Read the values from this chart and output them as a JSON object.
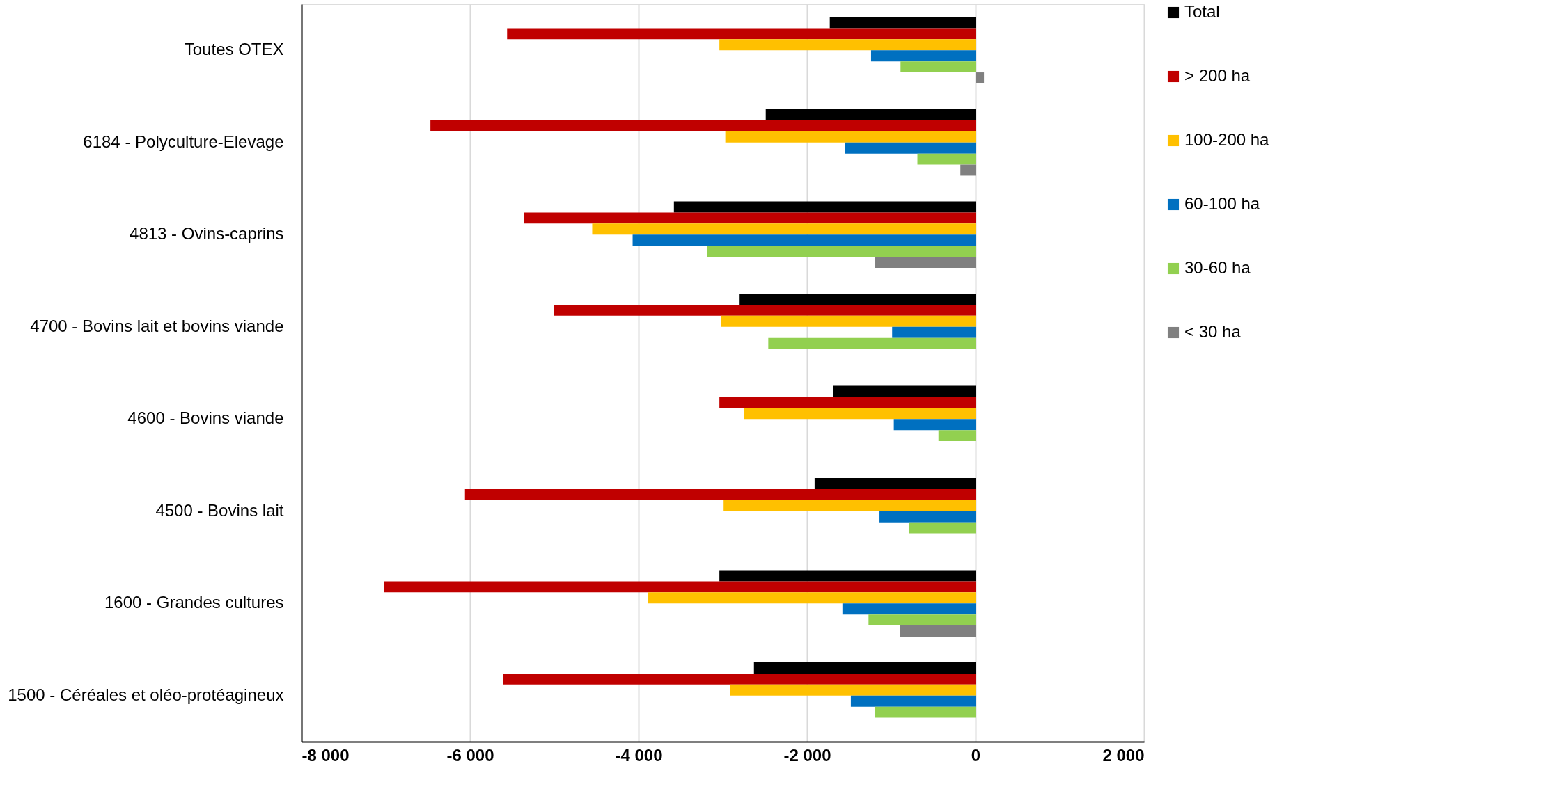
{
  "chart_data": {
    "type": "bar",
    "orientation": "horizontal",
    "categories": [
      "Toutes OTEX",
      "6184 - Polyculture-Elevage",
      "4813 - Ovins-caprins",
      "4700 - Bovins lait et bovins viande",
      "4600 - Bovins viande",
      "4500 - Bovins lait",
      "1600 - Grandes cultures",
      "1500 - Céréales et oléo-protéagineux"
    ],
    "series": [
      {
        "name": "Total",
        "color": "#000000",
        "values": [
          -1730,
          -2490,
          -3580,
          -2800,
          -1690,
          -1910,
          -3040,
          -2630
        ]
      },
      {
        "name": "> 200 ha",
        "color": "#c00000",
        "values": [
          -5560,
          -6470,
          -5360,
          -5000,
          -3040,
          -6060,
          -7020,
          -5610
        ]
      },
      {
        "name": "100-200 ha",
        "color": "#ffc000",
        "values": [
          -3040,
          -2970,
          -4550,
          -3020,
          -2750,
          -2990,
          -3890,
          -2910
        ]
      },
      {
        "name": "60-100 ha",
        "color": "#0070c0",
        "values": [
          -1240,
          -1550,
          -4070,
          -990,
          -970,
          -1140,
          -1580,
          -1480
        ]
      },
      {
        "name": "30-60 ha",
        "color": "#92d050",
        "values": [
          -890,
          -690,
          -3190,
          -2460,
          -440,
          -790,
          -1270,
          -1190
        ]
      },
      {
        "name": "< 30 ha",
        "color": "#808080",
        "values": [
          100,
          -180,
          -1190,
          null,
          null,
          null,
          -900,
          null
        ]
      }
    ],
    "xlim": [
      -8000,
      2000
    ],
    "xticks": [
      {
        "value": -8000,
        "label": "-8 000"
      },
      {
        "value": -6000,
        "label": "-6 000"
      },
      {
        "value": -4000,
        "label": "-4 000"
      },
      {
        "value": -2000,
        "label": "-2 000"
      },
      0,
      {
        "value": 2000,
        "label": "2 000"
      }
    ],
    "grid": "x",
    "legend": "right"
  }
}
